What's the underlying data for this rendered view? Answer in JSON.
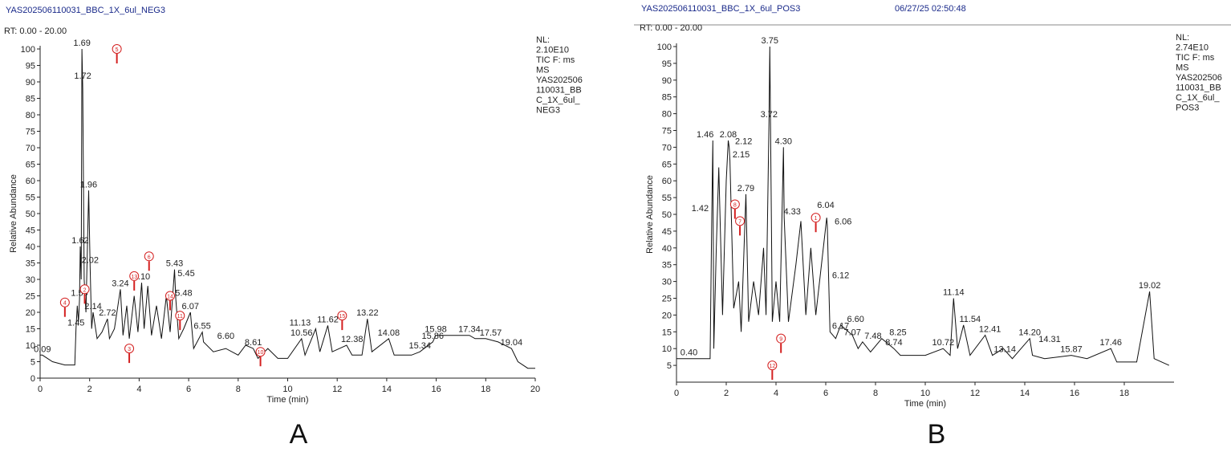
{
  "chart_data": [
    {
      "type": "line",
      "title": "YAS202506110031_BBC_1X_6ul_NEG3",
      "rt_range": "RT: 0.00 - 20.00",
      "info_lines": [
        "NL:",
        "2.10E10",
        "TIC F: ms",
        "MS",
        "YAS202506",
        "110031_BB",
        "C_1X_6ul_",
        "NEG3"
      ],
      "ylabel": "Relative Abundance",
      "xlabel": "Time (min)",
      "panel_label": "A",
      "xlim": [
        0,
        20
      ],
      "xticks": [
        0,
        2,
        4,
        6,
        8,
        10,
        12,
        14,
        16,
        18,
        20
      ],
      "ylim": [
        0,
        100
      ],
      "yticks": [
        0,
        5,
        10,
        15,
        20,
        25,
        30,
        35,
        40,
        45,
        50,
        55,
        60,
        65,
        70,
        75,
        80,
        85,
        90,
        95,
        100
      ],
      "series": [
        {
          "color": "#111111",
          "x": [
            0,
            0.09,
            0.5,
            1,
            1.4,
            1.45,
            1.5,
            1.55,
            1.59,
            1.62,
            1.66,
            1.69,
            1.72,
            1.78,
            1.85,
            1.96,
            2.02,
            2.08,
            2.14,
            2.3,
            2.5,
            2.72,
            2.8,
            3.0,
            3.24,
            3.35,
            3.5,
            3.6,
            3.8,
            3.95,
            4.1,
            4.2,
            4.35,
            4.5,
            4.7,
            4.9,
            5.1,
            5.25,
            5.43,
            5.48,
            5.6,
            5.8,
            6.07,
            6.2,
            6.55,
            6.6,
            7,
            7.5,
            8,
            8.3,
            8.61,
            8.8,
            9.2,
            9.6,
            10,
            10.56,
            10.7,
            11.13,
            11.3,
            11.62,
            11.8,
            12.38,
            12.6,
            13,
            13.22,
            13.4,
            14.08,
            14.3,
            15,
            15.34,
            15.86,
            15.98,
            16.5,
            17,
            17.34,
            17.57,
            18,
            18.5,
            19.04,
            19.3,
            19.7,
            20
          ],
          "values": [
            7,
            7,
            5,
            4,
            4,
            15,
            22,
            17,
            24,
            40,
            30,
            100,
            88,
            30,
            20,
            57,
            34,
            15,
            20,
            12,
            14,
            18,
            12,
            15,
            27,
            13,
            22,
            12,
            25,
            14,
            29,
            15,
            28,
            13,
            22,
            12,
            25,
            14,
            33,
            24,
            12,
            15,
            20,
            9,
            14,
            11,
            8,
            9,
            7,
            10,
            9,
            6,
            9,
            6,
            6,
            12,
            7,
            15,
            8,
            16,
            8,
            10,
            7,
            7,
            18,
            8,
            12,
            7,
            7,
            8,
            11,
            13,
            13,
            13,
            13,
            12,
            12,
            11,
            9,
            5,
            3,
            3
          ]
        }
      ],
      "peak_labels": [
        {
          "label": "1.69",
          "x": 1.69,
          "y": 100
        },
        {
          "label": "1.72",
          "x": 1.72,
          "y": 90
        },
        {
          "label": "1.96",
          "x": 1.96,
          "y": 57
        },
        {
          "label": "1.62",
          "x": 1.62,
          "y": 40
        },
        {
          "label": "2.02",
          "x": 2.02,
          "y": 34
        },
        {
          "label": "1.59",
          "x": 1.59,
          "y": 24
        },
        {
          "label": "2.14",
          "x": 2.14,
          "y": 20
        },
        {
          "label": "2.72",
          "x": 2.72,
          "y": 18
        },
        {
          "label": "1.45",
          "x": 1.45,
          "y": 15
        },
        {
          "label": "0.09",
          "x": 0.09,
          "y": 7
        },
        {
          "label": "3.24",
          "x": 3.24,
          "y": 27
        },
        {
          "label": "4.10",
          "x": 4.1,
          "y": 29
        },
        {
          "label": "5.43",
          "x": 5.43,
          "y": 33
        },
        {
          "label": "5.45",
          "x": 5.9,
          "y": 30
        },
        {
          "label": "5.48",
          "x": 5.8,
          "y": 24
        },
        {
          "label": "6.07",
          "x": 6.07,
          "y": 20
        },
        {
          "label": "6.55",
          "x": 6.55,
          "y": 14
        },
        {
          "label": "6.60",
          "x": 7.5,
          "y": 11
        },
        {
          "label": "8.61",
          "x": 8.61,
          "y": 9
        },
        {
          "label": "11.13",
          "x": 10.5,
          "y": 15
        },
        {
          "label": "10.56",
          "x": 10.56,
          "y": 12
        },
        {
          "label": "11.62",
          "x": 11.62,
          "y": 16
        },
        {
          "label": "12.38",
          "x": 12.6,
          "y": 10
        },
        {
          "label": "13.22",
          "x": 13.22,
          "y": 18
        },
        {
          "label": "14.08",
          "x": 14.08,
          "y": 12
        },
        {
          "label": "15.34",
          "x": 15.34,
          "y": 8
        },
        {
          "label": "15.86",
          "x": 15.86,
          "y": 11
        },
        {
          "label": "15.98",
          "x": 15.98,
          "y": 13
        },
        {
          "label": "17.34",
          "x": 17.34,
          "y": 13
        },
        {
          "label": "17.57",
          "x": 18.2,
          "y": 12
        },
        {
          "label": "19.04",
          "x": 19.04,
          "y": 9
        }
      ],
      "markers": [
        {
          "label": "5",
          "x": 3.1,
          "y": 100
        },
        {
          "label": "2",
          "x": 1.8,
          "y": 27
        },
        {
          "label": "4",
          "x": 1.0,
          "y": 23
        },
        {
          "label": "3",
          "x": 3.6,
          "y": 9
        },
        {
          "label": "6",
          "x": 4.4,
          "y": 37
        },
        {
          "label": "13",
          "x": 3.8,
          "y": 31
        },
        {
          "label": "14",
          "x": 5.25,
          "y": 25
        },
        {
          "label": "11",
          "x": 5.65,
          "y": 19
        },
        {
          "label": "10",
          "x": 8.9,
          "y": 8
        },
        {
          "label": "15",
          "x": 12.2,
          "y": 19
        }
      ],
      "marker_color": "#d42020"
    },
    {
      "type": "line",
      "title": "YAS202506110031_BBC_1X_6ul_POS3",
      "timestamp": "06/27/25 02:50:48",
      "rt_range": "RT: 0.00 - 20.00",
      "info_lines": [
        "NL:",
        "2.74E10",
        "TIC F: ms",
        "MS",
        "YAS202506",
        "110031_BB",
        "C_1X_6ul_",
        "POS3"
      ],
      "ylabel": "Relative Abundance",
      "xlabel": "Time (min)",
      "panel_label": "B",
      "xlim": [
        0,
        20
      ],
      "xticks": [
        0,
        2,
        4,
        6,
        8,
        10,
        12,
        14,
        16,
        18
      ],
      "ylim": [
        0,
        100
      ],
      "yticks": [
        5,
        10,
        15,
        20,
        25,
        30,
        35,
        40,
        45,
        50,
        55,
        60,
        65,
        70,
        75,
        80,
        85,
        90,
        95,
        100
      ],
      "series": [
        {
          "color": "#111111",
          "x": [
            0,
            0.4,
            1,
            1.35,
            1.42,
            1.46,
            1.5,
            1.6,
            1.7,
            1.85,
            2.0,
            2.08,
            2.12,
            2.15,
            2.3,
            2.5,
            2.6,
            2.79,
            2.9,
            3.1,
            3.3,
            3.5,
            3.6,
            3.72,
            3.75,
            3.85,
            4.0,
            4.15,
            4.3,
            4.33,
            4.5,
            4.8,
            5.0,
            5.2,
            5.4,
            5.6,
            6.04,
            6.06,
            6.12,
            6.17,
            6.4,
            6.6,
            7.07,
            7.3,
            7.48,
            7.8,
            8.25,
            8.74,
            9,
            9.5,
            10,
            10.72,
            11,
            11.14,
            11.3,
            11.54,
            11.8,
            12.41,
            12.7,
            13.14,
            13.5,
            14.2,
            14.31,
            14.8,
            15.87,
            16.5,
            17.46,
            17.7,
            18.5,
            19.02,
            19.2,
            19.8
          ],
          "values": [
            7,
            7,
            7,
            7,
            50,
            72,
            10,
            40,
            64,
            20,
            60,
            72,
            70,
            66,
            22,
            30,
            15,
            56,
            18,
            30,
            20,
            40,
            20,
            78,
            100,
            18,
            30,
            18,
            70,
            49,
            18,
            35,
            48,
            20,
            40,
            20,
            49,
            47,
            30,
            15,
            13,
            17,
            14,
            10,
            12,
            9,
            13,
            10,
            8,
            8,
            8,
            10,
            8,
            25,
            10,
            17,
            8,
            14,
            8,
            10,
            7,
            13,
            8,
            7,
            8,
            7,
            10,
            6,
            6,
            27,
            7,
            5
          ]
        }
      ],
      "peak_labels": [
        {
          "label": "3.75",
          "x": 3.75,
          "y": 100
        },
        {
          "label": "3.72",
          "x": 3.72,
          "y": 78
        },
        {
          "label": "1.46",
          "x": 1.15,
          "y": 72
        },
        {
          "label": "2.08",
          "x": 2.08,
          "y": 72
        },
        {
          "label": "2.12",
          "x": 2.7,
          "y": 70
        },
        {
          "label": "2.15",
          "x": 2.6,
          "y": 66
        },
        {
          "label": "4.30",
          "x": 4.3,
          "y": 70
        },
        {
          "label": "2.79",
          "x": 2.79,
          "y": 56
        },
        {
          "label": "1.42",
          "x": 0.95,
          "y": 50
        },
        {
          "label": "4.33",
          "x": 4.65,
          "y": 49
        },
        {
          "label": "6.04",
          "x": 6.0,
          "y": 51
        },
        {
          "label": "6.06",
          "x": 6.7,
          "y": 46
        },
        {
          "label": "6.12",
          "x": 6.6,
          "y": 30
        },
        {
          "label": "6.17",
          "x": 6.6,
          "y": 15
        },
        {
          "label": "6.60",
          "x": 7.2,
          "y": 17
        },
        {
          "label": "7.07",
          "x": 7.07,
          "y": 13
        },
        {
          "label": "7.48",
          "x": 7.9,
          "y": 12
        },
        {
          "label": "8.25",
          "x": 8.9,
          "y": 13
        },
        {
          "label": "8.74",
          "x": 8.74,
          "y": 10
        },
        {
          "label": "10.72",
          "x": 10.72,
          "y": 10
        },
        {
          "label": "11.14",
          "x": 11.14,
          "y": 25
        },
        {
          "label": "11.54",
          "x": 11.8,
          "y": 17
        },
        {
          "label": "12.41",
          "x": 12.6,
          "y": 14
        },
        {
          "label": "13.14",
          "x": 13.2,
          "y": 8
        },
        {
          "label": "14.20",
          "x": 14.2,
          "y": 13
        },
        {
          "label": "14.31",
          "x": 15.0,
          "y": 11
        },
        {
          "label": "15.87",
          "x": 15.87,
          "y": 8
        },
        {
          "label": "17.46",
          "x": 17.46,
          "y": 10
        },
        {
          "label": "19.02",
          "x": 19.02,
          "y": 27
        },
        {
          "label": "0.40",
          "x": 0.5,
          "y": 7
        }
      ],
      "markers": [
        {
          "label": "8",
          "x": 2.35,
          "y": 53
        },
        {
          "label": "7",
          "x": 2.55,
          "y": 48
        },
        {
          "label": "1",
          "x": 5.6,
          "y": 49
        },
        {
          "label": "9",
          "x": 4.2,
          "y": 13
        },
        {
          "label": "12",
          "x": 3.85,
          "y": 5
        }
      ],
      "marker_color": "#d42020"
    }
  ]
}
